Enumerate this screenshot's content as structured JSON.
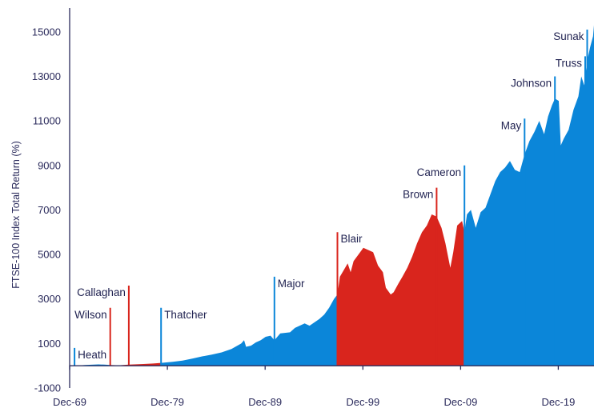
{
  "chart_data": {
    "type": "area",
    "ylabel": "FTSE-100 Index Total Return (%)",
    "xlabel": "",
    "ylim": [
      -1000,
      16000
    ],
    "y_ticks": [
      -1000,
      1000,
      3000,
      5000,
      7000,
      9000,
      11000,
      13000,
      15000
    ],
    "x_tick_labels": [
      {
        "label": "Dec-69",
        "year": 1969.95
      },
      {
        "label": "Dec-79",
        "year": 1979.95
      },
      {
        "label": "Dec-89",
        "year": 1989.95
      },
      {
        "label": "Dec-99",
        "year": 1999.95
      },
      {
        "label": "Dec-09",
        "year": 2009.95
      },
      {
        "label": "Dec-19",
        "year": 2019.95
      }
    ],
    "xlim": [
      1969.95,
      2023.6
    ],
    "colors": {
      "conservative": "#0b86d9",
      "labour": "#d9251d",
      "axis": "#2b2b5c",
      "text": "#1f2150"
    },
    "series": [
      {
        "party": "conservative",
        "points": [
          [
            1970.45,
            0
          ],
          [
            1971.5,
            30
          ],
          [
            1972.9,
            60
          ],
          [
            1973.5,
            50
          ],
          [
            1974.1,
            30
          ]
        ]
      },
      {
        "party": "labour",
        "points": [
          [
            1974.1,
            30
          ],
          [
            1975.0,
            20
          ],
          [
            1976.0,
            50
          ],
          [
            1977.5,
            80
          ],
          [
            1978.5,
            100
          ],
          [
            1979.3,
            130
          ]
        ]
      },
      {
        "party": "conservative",
        "points": [
          [
            1979.3,
            130
          ],
          [
            1980.5,
            180
          ],
          [
            1981.5,
            230
          ],
          [
            1982.5,
            320
          ],
          [
            1983.5,
            420
          ],
          [
            1984.5,
            500
          ],
          [
            1985.5,
            600
          ],
          [
            1986.5,
            750
          ],
          [
            1987.5,
            1000
          ],
          [
            1987.8,
            1150
          ],
          [
            1988.0,
            850
          ],
          [
            1988.5,
            900
          ],
          [
            1989.0,
            1050
          ],
          [
            1989.5,
            1150
          ],
          [
            1990.0,
            1300
          ],
          [
            1990.5,
            1350
          ],
          [
            1990.9,
            1150
          ],
          [
            1991.5,
            1450
          ],
          [
            1992.5,
            1500
          ],
          [
            1993.0,
            1700
          ],
          [
            1994.0,
            1900
          ],
          [
            1994.5,
            1800
          ],
          [
            1995.5,
            2100
          ],
          [
            1996.0,
            2300
          ],
          [
            1996.5,
            2600
          ],
          [
            1997.0,
            3000
          ],
          [
            1997.35,
            3200
          ]
        ]
      },
      {
        "party": "labour",
        "points": [
          [
            1997.35,
            3200
          ],
          [
            1997.6,
            4000
          ],
          [
            1998.0,
            4300
          ],
          [
            1998.4,
            4600
          ],
          [
            1998.7,
            4200
          ],
          [
            1999.0,
            4700
          ],
          [
            1999.5,
            5000
          ],
          [
            2000.0,
            5300
          ],
          [
            2000.5,
            5200
          ],
          [
            2001.0,
            5100
          ],
          [
            2001.5,
            4500
          ],
          [
            2002.0,
            4200
          ],
          [
            2002.3,
            3500
          ],
          [
            2002.8,
            3200
          ],
          [
            2003.1,
            3300
          ],
          [
            2003.6,
            3700
          ],
          [
            2004.0,
            4000
          ],
          [
            2004.5,
            4400
          ],
          [
            2005.0,
            4900
          ],
          [
            2005.5,
            5500
          ],
          [
            2006.0,
            6000
          ],
          [
            2006.5,
            6300
          ],
          [
            2007.0,
            6800
          ],
          [
            2007.5,
            6700
          ],
          [
            2008.0,
            6200
          ],
          [
            2008.4,
            5500
          ],
          [
            2008.9,
            4400
          ],
          [
            2009.2,
            5100
          ],
          [
            2009.6,
            6300
          ],
          [
            2010.1,
            6500
          ],
          [
            2010.35,
            6000
          ]
        ]
      },
      {
        "party": "conservative",
        "points": [
          [
            2010.35,
            6000
          ],
          [
            2010.6,
            6800
          ],
          [
            2011.0,
            7000
          ],
          [
            2011.5,
            6200
          ],
          [
            2012.0,
            6900
          ],
          [
            2012.5,
            7100
          ],
          [
            2013.0,
            7700
          ],
          [
            2013.5,
            8300
          ],
          [
            2014.0,
            8700
          ],
          [
            2014.5,
            8900
          ],
          [
            2015.0,
            9200
          ],
          [
            2015.5,
            8800
          ],
          [
            2016.0,
            8700
          ],
          [
            2016.5,
            9500
          ],
          [
            2017.0,
            10100
          ],
          [
            2017.5,
            10500
          ],
          [
            2018.0,
            11000
          ],
          [
            2018.5,
            10400
          ],
          [
            2018.9,
            11200
          ],
          [
            2019.3,
            11700
          ],
          [
            2019.6,
            12000
          ],
          [
            2020.0,
            11900
          ],
          [
            2020.2,
            9900
          ],
          [
            2020.5,
            10200
          ],
          [
            2021.0,
            10600
          ],
          [
            2021.5,
            11500
          ],
          [
            2022.0,
            12100
          ],
          [
            2022.3,
            13000
          ],
          [
            2022.6,
            12600
          ],
          [
            2022.9,
            13700
          ],
          [
            2023.2,
            14300
          ],
          [
            2023.5,
            14800
          ],
          [
            2023.6,
            15300
          ]
        ]
      }
    ],
    "annotations": [
      {
        "label": "Heath",
        "year": 1970.45,
        "line_top": 800,
        "party": "conservative",
        "side": "right"
      },
      {
        "label": "Wilson",
        "year": 1974.1,
        "line_top": 2600,
        "party": "labour",
        "side": "left"
      },
      {
        "label": "Callaghan",
        "year": 1976.0,
        "line_top": 3600,
        "party": "labour",
        "side": "left"
      },
      {
        "label": "Thatcher",
        "year": 1979.3,
        "line_top": 2600,
        "party": "conservative",
        "side": "right"
      },
      {
        "label": "Major",
        "year": 1990.9,
        "line_top": 4000,
        "party": "conservative",
        "side": "right"
      },
      {
        "label": "Blair",
        "year": 1997.35,
        "line_top": 6000,
        "party": "labour",
        "side": "right"
      },
      {
        "label": "Brown",
        "year": 2007.5,
        "line_top": 8000,
        "party": "labour",
        "side": "left"
      },
      {
        "label": "Cameron",
        "year": 2010.35,
        "line_top": 9000,
        "party": "conservative",
        "side": "left"
      },
      {
        "label": "May",
        "year": 2016.5,
        "line_top": 11100,
        "party": "conservative",
        "side": "left"
      },
      {
        "label": "Johnson",
        "year": 2019.6,
        "line_top": 13000,
        "party": "conservative",
        "side": "left"
      },
      {
        "label": "Truss",
        "year": 2022.7,
        "line_top": 13900,
        "party": "conservative",
        "side": "left"
      },
      {
        "label": "Sunak",
        "year": 2022.9,
        "line_top": 15100,
        "party": "conservative",
        "side": "left"
      }
    ]
  }
}
